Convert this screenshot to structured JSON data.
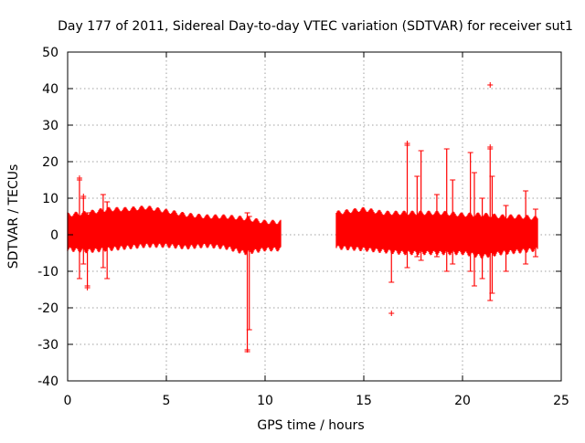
{
  "chart_data": {
    "type": "scatter",
    "title": "Day 177 of 2011, Sidereal Day-to-day VTEC variation (SDTVAR) for receiver sut1",
    "xlabel": "GPS time / hours",
    "ylabel": "SDTVAR / TECUs",
    "xlim": [
      0,
      25
    ],
    "ylim": [
      -40,
      50
    ],
    "xticks": [
      0,
      5,
      10,
      15,
      20,
      25
    ],
    "yticks": [
      -40,
      -30,
      -20,
      -10,
      0,
      10,
      20,
      30,
      40,
      50
    ],
    "grid": true,
    "marker": "+",
    "series_color": "#ff0000",
    "description_segments": [
      {
        "x_start": 0.0,
        "x_end": 10.8,
        "note": "dense band roughly -4 to +6"
      },
      {
        "x_start": 13.6,
        "x_end": 23.8,
        "note": "dense band roughly -5 to +6"
      }
    ],
    "data_gap": [
      10.8,
      13.6
    ],
    "envelope": [
      {
        "x": 0.0,
        "lo": -4,
        "hi": 5.5
      },
      {
        "x": 1.0,
        "lo": -4.5,
        "hi": 6
      },
      {
        "x": 2.0,
        "lo": -4,
        "hi": 7
      },
      {
        "x": 3.0,
        "lo": -3.5,
        "hi": 7
      },
      {
        "x": 4.0,
        "lo": -3,
        "hi": 7.5
      },
      {
        "x": 5.0,
        "lo": -3,
        "hi": 6.5
      },
      {
        "x": 6.0,
        "lo": -3.5,
        "hi": 5.5
      },
      {
        "x": 7.0,
        "lo": -3,
        "hi": 5
      },
      {
        "x": 8.0,
        "lo": -3.5,
        "hi": 5
      },
      {
        "x": 9.0,
        "lo": -5,
        "hi": 4.5
      },
      {
        "x": 10.0,
        "lo": -4,
        "hi": 3.5
      },
      {
        "x": 10.8,
        "lo": -4,
        "hi": 3.5
      },
      {
        "x": 13.6,
        "lo": -3.5,
        "hi": 6
      },
      {
        "x": 15.0,
        "lo": -4,
        "hi": 7
      },
      {
        "x": 16.0,
        "lo": -4.5,
        "hi": 6
      },
      {
        "x": 17.0,
        "lo": -5,
        "hi": 6
      },
      {
        "x": 18.0,
        "lo": -5,
        "hi": 6
      },
      {
        "x": 19.0,
        "lo": -5,
        "hi": 6
      },
      {
        "x": 20.0,
        "lo": -5,
        "hi": 5.5
      },
      {
        "x": 21.0,
        "lo": -6,
        "hi": 5.5
      },
      {
        "x": 22.0,
        "lo": -5,
        "hi": 5
      },
      {
        "x": 23.0,
        "lo": -4.5,
        "hi": 5
      },
      {
        "x": 23.8,
        "lo": -4,
        "hi": 4.5
      }
    ],
    "spikes": [
      {
        "x": 0.6,
        "lo": -12,
        "hi": 15
      },
      {
        "x": 0.8,
        "lo": -8,
        "hi": 10
      },
      {
        "x": 1.0,
        "lo": -14,
        "hi": 6
      },
      {
        "x": 1.8,
        "lo": -9,
        "hi": 11
      },
      {
        "x": 2.0,
        "lo": -12,
        "hi": 9
      },
      {
        "x": 9.1,
        "lo": -32,
        "hi": 6
      },
      {
        "x": 9.2,
        "lo": -26,
        "hi": 5
      },
      {
        "x": 16.4,
        "lo": -13,
        "hi": 5
      },
      {
        "x": 17.2,
        "lo": -9,
        "hi": 24.5
      },
      {
        "x": 17.7,
        "lo": -6,
        "hi": 16
      },
      {
        "x": 17.9,
        "lo": -7,
        "hi": 23
      },
      {
        "x": 18.7,
        "lo": -6,
        "hi": 11
      },
      {
        "x": 19.2,
        "lo": -10,
        "hi": 23.5
      },
      {
        "x": 19.5,
        "lo": -8,
        "hi": 15
      },
      {
        "x": 20.4,
        "lo": -10,
        "hi": 22.5
      },
      {
        "x": 20.6,
        "lo": -14,
        "hi": 17
      },
      {
        "x": 21.0,
        "lo": -12,
        "hi": 10
      },
      {
        "x": 21.4,
        "lo": -18,
        "hi": 23.5
      },
      {
        "x": 21.5,
        "lo": -16,
        "hi": 16
      },
      {
        "x": 22.2,
        "lo": -10,
        "hi": 8
      },
      {
        "x": 23.2,
        "lo": -8,
        "hi": 12
      },
      {
        "x": 23.7,
        "lo": -6,
        "hi": 7
      }
    ],
    "outliers": [
      {
        "x": 0.6,
        "y": 15.5
      },
      {
        "x": 0.8,
        "y": 10.5
      },
      {
        "x": 1.0,
        "y": -14.5
      },
      {
        "x": 9.1,
        "y": -31.5
      },
      {
        "x": 16.4,
        "y": -21.5
      },
      {
        "x": 17.2,
        "y": 25
      },
      {
        "x": 21.4,
        "y": 41
      },
      {
        "x": 21.4,
        "y": 24
      }
    ]
  }
}
